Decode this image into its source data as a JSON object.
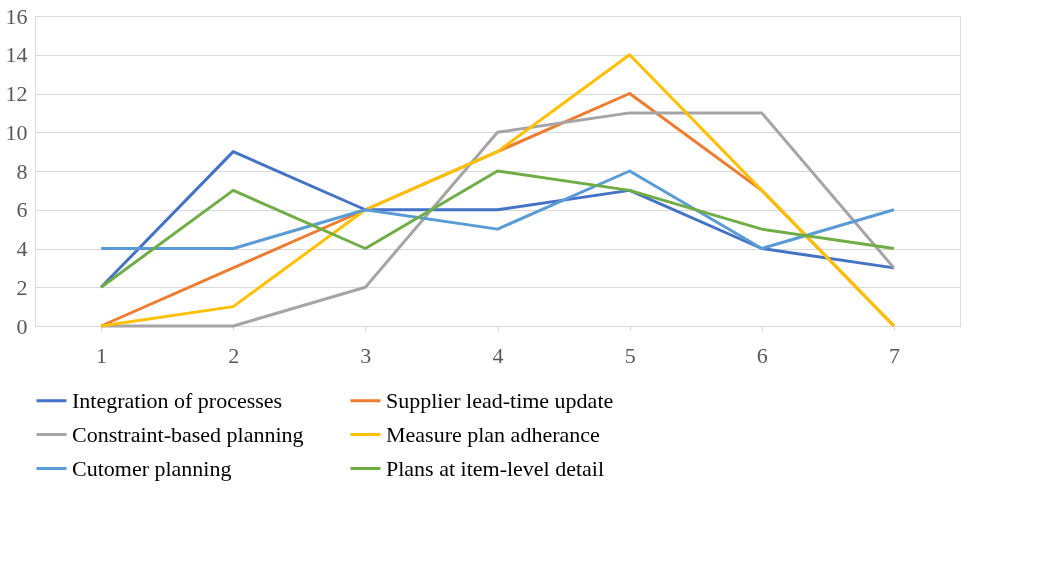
{
  "chart_data": {
    "type": "line",
    "categories": [
      "1",
      "2",
      "3",
      "4",
      "5",
      "6",
      "7"
    ],
    "series": [
      {
        "name": "Integration of processes",
        "color": "#4472c4",
        "values": [
          2,
          9,
          6,
          6,
          7,
          4,
          3
        ]
      },
      {
        "name": "Supplier lead-time update",
        "color": "#ed7d31",
        "values": [
          0,
          3,
          6,
          9,
          12,
          7,
          0
        ]
      },
      {
        "name": "Constraint-based planning",
        "color": "#a5a5a5",
        "values": [
          0,
          0,
          2,
          10,
          11,
          11,
          3
        ]
      },
      {
        "name": "Measure plan adherance",
        "color": "#ffc000",
        "values": [
          0,
          1,
          6,
          9,
          14,
          7,
          0
        ]
      },
      {
        "name": "Cutomer planning",
        "color": "#5b9bd5",
        "values": [
          4,
          4,
          6,
          5,
          8,
          4,
          6
        ]
      },
      {
        "name": "Plans at item-level detail",
        "color": "#70ad47",
        "values": [
          2,
          7,
          4,
          8,
          7,
          5,
          4
        ]
      }
    ],
    "ylim": [
      0,
      16
    ],
    "yticks": [
      0,
      2,
      4,
      6,
      8,
      10,
      12,
      14,
      16
    ],
    "grid": "y",
    "legend": "bottom",
    "marker": "none",
    "line_style": "solid"
  }
}
